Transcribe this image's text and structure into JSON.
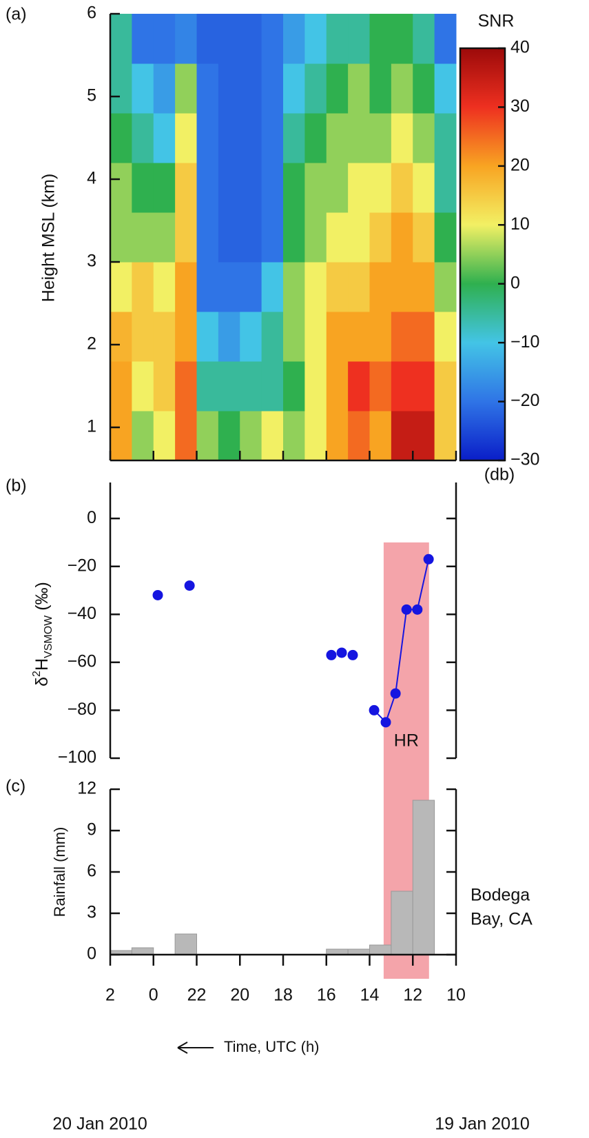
{
  "chart_data": [
    {
      "type": "heatmap",
      "panel_label": "(a)",
      "ylabel": "Height MSL (km)",
      "xlim": [
        26,
        10
      ],
      "ylim": [
        0.6,
        6
      ],
      "yticks": [
        1,
        2,
        3,
        4,
        5,
        6
      ],
      "x_edges": [
        26,
        25,
        24,
        23,
        22,
        21,
        20,
        19,
        18,
        17,
        16,
        15,
        14,
        13,
        12,
        11,
        10
      ],
      "y_edges": [
        0.6,
        1.2,
        1.8,
        2.4,
        3.0,
        3.6,
        4.2,
        4.8,
        5.4,
        6.0
      ],
      "z": [
        [
          20,
          5,
          10,
          25,
          5,
          0,
          5,
          10,
          5,
          10,
          20,
          25,
          20,
          35,
          35,
          15
        ],
        [
          20,
          10,
          15,
          25,
          -5,
          -5,
          -5,
          -5,
          0,
          10,
          20,
          30,
          25,
          30,
          30,
          15
        ],
        [
          18,
          15,
          15,
          20,
          -10,
          -15,
          -10,
          -5,
          5,
          10,
          20,
          20,
          20,
          25,
          25,
          10
        ],
        [
          10,
          15,
          10,
          20,
          -20,
          -20,
          -20,
          -10,
          5,
          10,
          15,
          15,
          20,
          20,
          20,
          5
        ],
        [
          5,
          5,
          5,
          15,
          -20,
          -22,
          -22,
          -20,
          0,
          5,
          10,
          10,
          15,
          20,
          15,
          0
        ],
        [
          5,
          0,
          0,
          15,
          -20,
          -22,
          -22,
          -20,
          0,
          5,
          5,
          10,
          10,
          15,
          10,
          -5
        ],
        [
          0,
          -5,
          -10,
          10,
          -20,
          -22,
          -22,
          -20,
          -5,
          0,
          5,
          5,
          5,
          10,
          5,
          -5
        ],
        [
          -5,
          -10,
          -15,
          5,
          -20,
          -22,
          -22,
          -20,
          -10,
          -5,
          0,
          5,
          0,
          5,
          0,
          -10
        ],
        [
          -5,
          -20,
          -20,
          -18,
          -22,
          -22,
          -22,
          -20,
          -15,
          -10,
          -5,
          -5,
          0,
          0,
          -5,
          -20
        ]
      ],
      "colorbar": {
        "title": "SNR",
        "unit": "(db)",
        "lim": [
          -30,
          40
        ],
        "ticks": [
          {
            "value": -30,
            "label": "−30"
          },
          {
            "value": -20,
            "label": "−20"
          },
          {
            "value": -10,
            "label": "−10"
          },
          0,
          10,
          20,
          30,
          40
        ],
        "colormap": [
          "#0a1ec8",
          "#2f74e6",
          "#43c4e6",
          "#2fb04f",
          "#f2f064",
          "#f8a422",
          "#ee3020",
          "#9c0a0a"
        ]
      }
    },
    {
      "type": "scatter",
      "panel_label": "(b)",
      "ylabel": {
        "pre": "δ",
        "sup": "2",
        "base": "H",
        "sub": "VSMOW",
        "post": " (‰)"
      },
      "xlim": [
        26,
        10
      ],
      "ylim": [
        -100,
        15
      ],
      "yticks": [
        0,
        {
          "value": -20,
          "label": "−20"
        },
        {
          "value": -40,
          "label": "−40"
        },
        {
          "value": -60,
          "label": "−60"
        },
        {
          "value": -80,
          "label": "−80"
        },
        {
          "value": -100,
          "label": "−100"
        }
      ],
      "series": [
        {
          "color": "#1515e0",
          "x": [
            23.8,
            22.33,
            15.77,
            15.29,
            14.78,
            13.79,
            13.25,
            12.8,
            12.29,
            11.79,
            11.27
          ],
          "values": [
            -32,
            -28,
            -57,
            -56,
            -57,
            -80,
            -85,
            -73,
            -38,
            -38,
            -17
          ],
          "connected": [
            false,
            false,
            false,
            false,
            false,
            false,
            true,
            true,
            true,
            true,
            true
          ]
        }
      ],
      "highlight": {
        "label": "HR",
        "color": "#f4a4aa",
        "x": [
          13.35,
          11.25
        ],
        "top": -10
      }
    },
    {
      "type": "histogram",
      "panel_label": "(c)",
      "ylabel": "Rainfall (mm)",
      "xlim": [
        26,
        10
      ],
      "ylim": [
        0,
        12
      ],
      "yticks": [
        0,
        3,
        6,
        9,
        12
      ],
      "bins": [
        26,
        25,
        24,
        23,
        22,
        21,
        20,
        19,
        18,
        17,
        16,
        15,
        14,
        13,
        12,
        11,
        10
      ],
      "values": [
        0.3,
        0.5,
        0,
        1.5,
        0,
        0,
        0,
        0,
        0,
        0,
        0.4,
        0.4,
        0.7,
        4.6,
        11.2,
        0
      ],
      "color": "#b8b8b8",
      "xticks": [
        {
          "value": 26,
          "label": "2"
        },
        {
          "value": 24,
          "label": "0"
        },
        22,
        20,
        18,
        16,
        14,
        12,
        10
      ],
      "xlabel": "Time, UTC (h)",
      "station": [
        "Bodega",
        "Bay, CA"
      ],
      "date_labels": [
        "20 Jan 2010",
        "19 Jan 2010"
      ]
    }
  ]
}
